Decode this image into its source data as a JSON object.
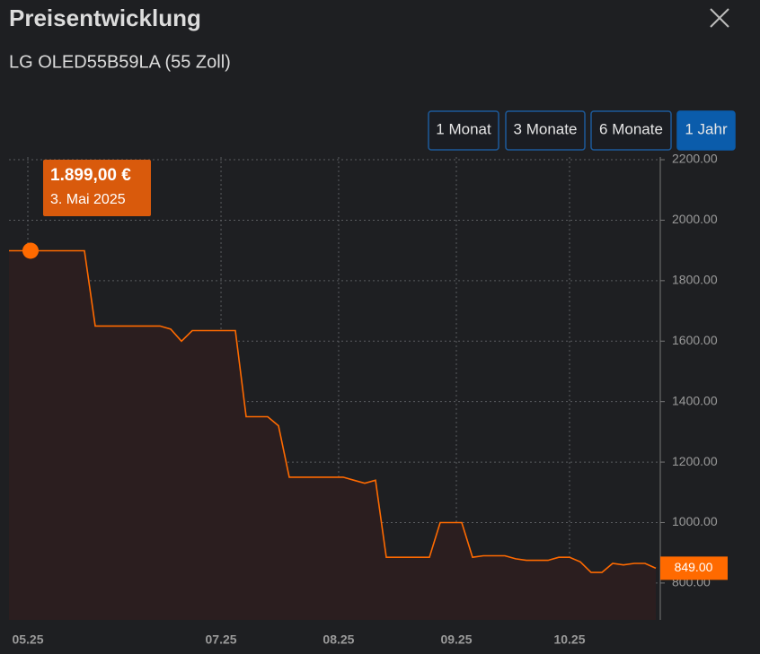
{
  "header": {
    "title": "Preisentwicklung",
    "subtitle": "LG OLED55B59LA (55 Zoll)"
  },
  "range_buttons": [
    {
      "label": "1 Monat",
      "active": false
    },
    {
      "label": "3 Monate",
      "active": false
    },
    {
      "label": "6 Monate",
      "active": false
    },
    {
      "label": "1 Jahr",
      "active": true
    }
  ],
  "chart_data": {
    "type": "line",
    "color": "#ff6a00",
    "area_color": "#2b1e1f",
    "grid": true,
    "values": [
      1899,
      1899,
      1899,
      1899,
      1899,
      1899,
      1899,
      1899,
      1650,
      1650,
      1650,
      1650,
      1650,
      1650,
      1650,
      1640,
      1600,
      1635,
      1635,
      1635,
      1635,
      1635,
      1350,
      1350,
      1350,
      1320,
      1150,
      1150,
      1150,
      1150,
      1150,
      1150,
      1140,
      1130,
      1140,
      885,
      885,
      885,
      885,
      885,
      1000,
      1000,
      1000,
      885,
      890,
      890,
      890,
      880,
      875,
      875,
      875,
      885,
      885,
      870,
      835,
      835,
      865,
      860,
      865,
      865,
      849
    ],
    "xticks": [
      {
        "value": 1.75,
        "label": "05.25"
      },
      {
        "value": 19.67,
        "label": "07.25"
      },
      {
        "value": 30.58,
        "label": "08.25"
      },
      {
        "value": 41.5,
        "label": "09.25"
      },
      {
        "value": 52,
        "label": "10.25"
      }
    ],
    "ylim": [
      678,
      2209
    ],
    "yticks": [
      {
        "value": 800,
        "label": "800.00"
      },
      {
        "value": 1000,
        "label": "1000.00"
      },
      {
        "value": 1200,
        "label": "1200.00"
      },
      {
        "value": 1400,
        "label": "1400.00"
      },
      {
        "value": 1600,
        "label": "1600.00"
      },
      {
        "value": 1800,
        "label": "1800.00"
      },
      {
        "value": 2000,
        "label": "2000.00"
      },
      {
        "value": 2200,
        "label": "2200.00"
      }
    ],
    "tooltip": {
      "value": 1899,
      "label": "1.899,00 €",
      "date": "3. Mai 2025"
    },
    "price_marker": {
      "value": 849,
      "label": "849.00"
    }
  }
}
